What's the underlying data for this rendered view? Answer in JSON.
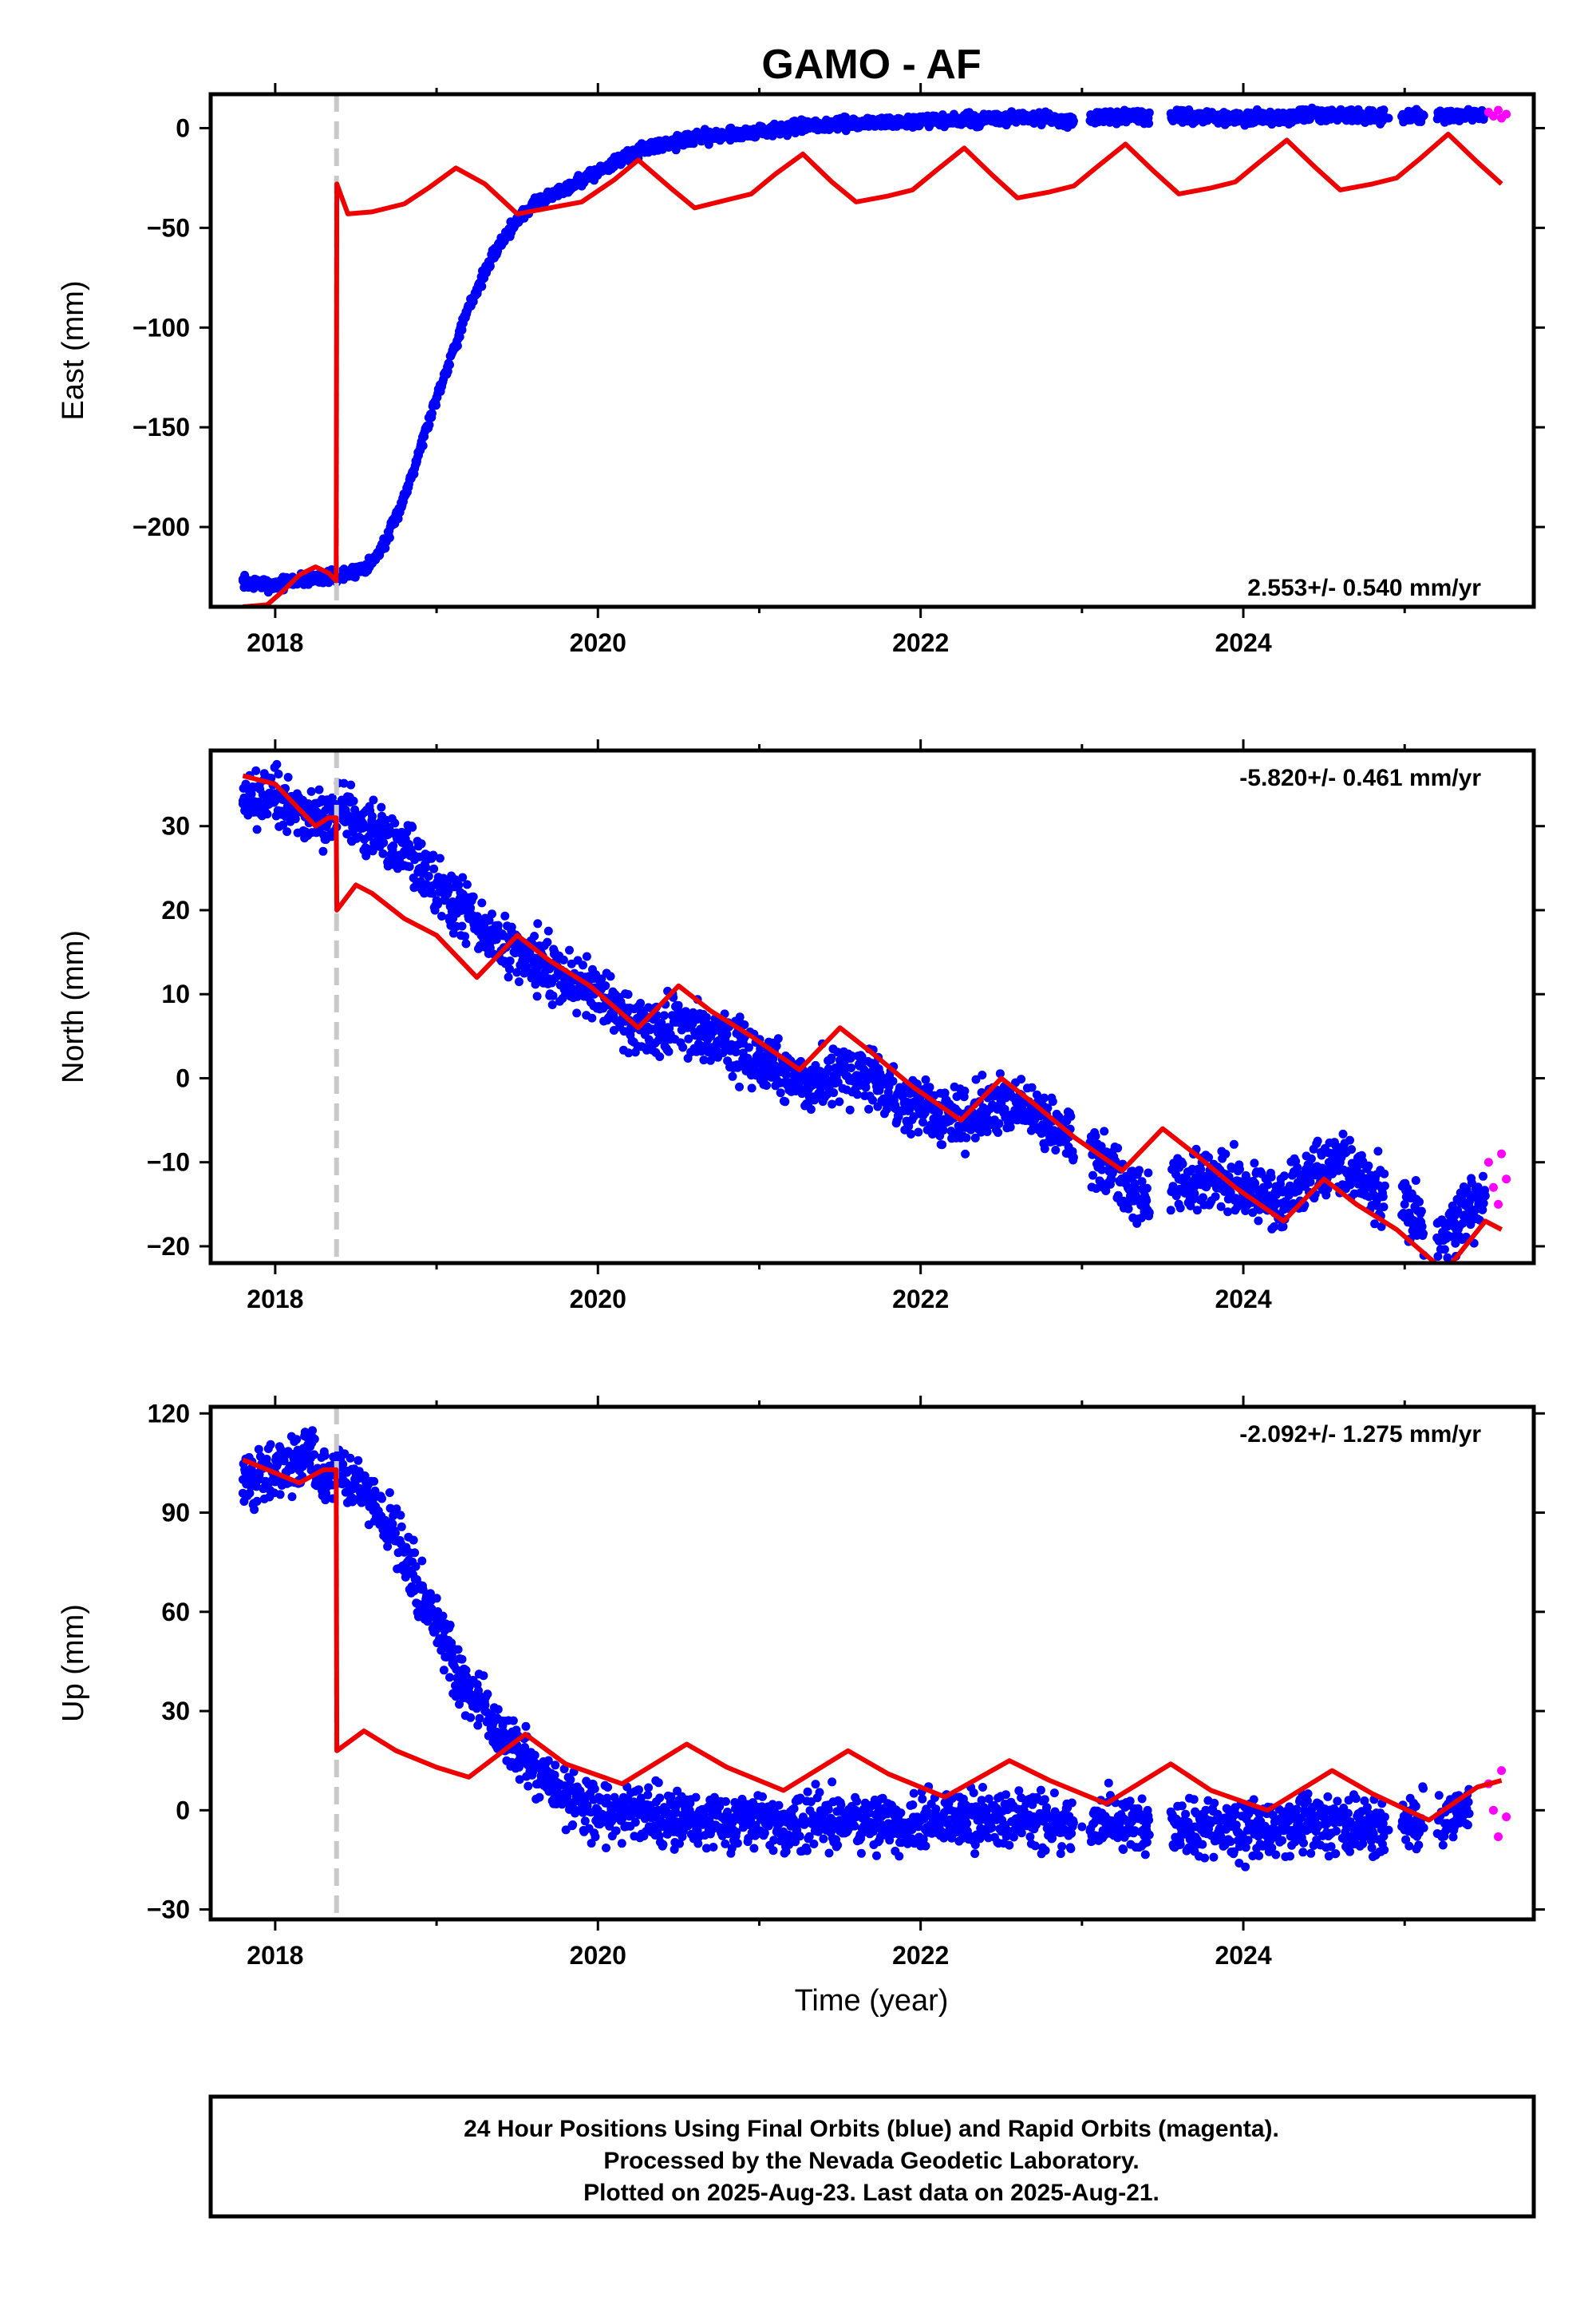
{
  "title": "GAMO - AF",
  "xlabel": "Time (year)",
  "x_ticks": [
    2018,
    2020,
    2022,
    2024
  ],
  "footer": {
    "line1": "24 Hour Positions Using Final Orbits (blue) and Rapid Orbits (magenta).",
    "line2": "Processed by the Nevada Geodetic Laboratory.",
    "line3": "Plotted on 2025-Aug-23. Last data on 2025-Aug-21."
  },
  "colors": {
    "final": "#0000ff",
    "rapid": "#ff00ff",
    "model": "#ee0000",
    "event": "#c8c8c8"
  },
  "chart_data": [
    {
      "type": "scatter",
      "panel": "east",
      "ylabel": "East (mm)",
      "rate_label": "2.553+/- 0.540 mm/yr",
      "xlim": [
        2017.6,
        2025.8
      ],
      "ylim": [
        -240,
        17
      ],
      "y_ticks": [
        0,
        -50,
        -100,
        -150,
        -200
      ],
      "y_tick_labels": [
        "0",
        "−50",
        "−100",
        "−150",
        "−200"
      ],
      "event_line_x": 2018.38,
      "final_orbits": [
        [
          2017.8,
          -227
        ],
        [
          2017.85,
          -228
        ],
        [
          2018.0,
          -229
        ],
        [
          2018.1,
          -227
        ],
        [
          2018.2,
          -226
        ],
        [
          2018.3,
          -225
        ],
        [
          2018.4,
          -225
        ],
        [
          2018.5,
          -222
        ],
        [
          2018.6,
          -218
        ],
        [
          2018.7,
          -205
        ],
        [
          2018.8,
          -185
        ],
        [
          2018.9,
          -160
        ],
        [
          2019.0,
          -135
        ],
        [
          2019.1,
          -112
        ],
        [
          2019.2,
          -90
        ],
        [
          2019.3,
          -72
        ],
        [
          2019.4,
          -57
        ],
        [
          2019.5,
          -46
        ],
        [
          2019.6,
          -38
        ],
        [
          2019.8,
          -30
        ],
        [
          2020.0,
          -22
        ],
        [
          2020.2,
          -13
        ],
        [
          2020.4,
          -8
        ],
        [
          2020.6,
          -5
        ],
        [
          2020.8,
          -3
        ],
        [
          2021.0,
          -2
        ],
        [
          2021.2,
          0
        ],
        [
          2021.5,
          2
        ],
        [
          2021.8,
          3
        ],
        [
          2022.0,
          3
        ],
        [
          2022.3,
          4
        ],
        [
          2022.6,
          5
        ],
        [
          2022.9,
          4
        ],
        [
          2023.1,
          5
        ],
        [
          2023.4,
          6
        ],
        [
          2023.6,
          6
        ],
        [
          2023.8,
          5
        ],
        [
          2024.0,
          5
        ],
        [
          2024.3,
          6
        ],
        [
          2024.6,
          7
        ],
        [
          2024.9,
          5
        ],
        [
          2025.1,
          6
        ],
        [
          2025.3,
          6
        ],
        [
          2025.5,
          7
        ]
      ],
      "rapid_orbits": [
        [
          2025.52,
          8
        ],
        [
          2025.55,
          6
        ],
        [
          2025.58,
          9
        ],
        [
          2025.6,
          5
        ],
        [
          2025.63,
          7
        ]
      ],
      "model": [
        [
          2017.8,
          -240
        ],
        [
          2017.95,
          -239
        ],
        [
          2018.05,
          -232
        ],
        [
          2018.15,
          -224
        ],
        [
          2018.25,
          -220
        ],
        [
          2018.33,
          -223
        ],
        [
          2018.378,
          -227
        ],
        [
          2018.382,
          -28
        ],
        [
          2018.45,
          -43
        ],
        [
          2018.6,
          -42
        ],
        [
          2018.8,
          -38
        ],
        [
          2018.95,
          -30
        ],
        [
          2019.12,
          -20
        ],
        [
          2019.3,
          -28
        ],
        [
          2019.5,
          -43
        ],
        [
          2019.7,
          -40
        ],
        [
          2019.9,
          -37
        ],
        [
          2020.1,
          -26
        ],
        [
          2020.25,
          -16
        ],
        [
          2020.45,
          -30
        ],
        [
          2020.6,
          -40
        ],
        [
          2020.8,
          -36
        ],
        [
          2020.95,
          -33
        ],
        [
          2021.1,
          -23
        ],
        [
          2021.27,
          -13
        ],
        [
          2021.45,
          -27
        ],
        [
          2021.6,
          -37
        ],
        [
          2021.8,
          -34
        ],
        [
          2021.95,
          -31
        ],
        [
          2022.1,
          -21
        ],
        [
          2022.27,
          -10
        ],
        [
          2022.45,
          -24
        ],
        [
          2022.6,
          -35
        ],
        [
          2022.8,
          -32
        ],
        [
          2022.95,
          -29
        ],
        [
          2023.1,
          -19
        ],
        [
          2023.27,
          -8
        ],
        [
          2023.45,
          -22
        ],
        [
          2023.6,
          -33
        ],
        [
          2023.8,
          -30
        ],
        [
          2023.95,
          -27
        ],
        [
          2024.1,
          -17
        ],
        [
          2024.27,
          -6
        ],
        [
          2024.45,
          -20
        ],
        [
          2024.6,
          -31
        ],
        [
          2024.8,
          -28
        ],
        [
          2024.95,
          -25
        ],
        [
          2025.1,
          -15
        ],
        [
          2025.27,
          -3
        ],
        [
          2025.45,
          -17
        ],
        [
          2025.6,
          -28
        ]
      ]
    },
    {
      "type": "scatter",
      "panel": "north",
      "ylabel": "North (mm)",
      "rate_label": "-5.820+/- 0.461 mm/yr",
      "xlim": [
        2017.6,
        2025.8
      ],
      "ylim": [
        -22,
        39
      ],
      "y_ticks": [
        30,
        20,
        10,
        0,
        -10,
        -20
      ],
      "y_tick_labels": [
        "30",
        "20",
        "10",
        "0",
        "−10",
        "−20"
      ],
      "event_line_x": 2018.38,
      "final_orbits": [
        [
          2017.8,
          33
        ],
        [
          2018.0,
          33
        ],
        [
          2018.1,
          32
        ],
        [
          2018.2,
          31
        ],
        [
          2018.3,
          31
        ],
        [
          2018.4,
          32
        ],
        [
          2018.5,
          31
        ],
        [
          2018.6,
          30
        ],
        [
          2018.7,
          29
        ],
        [
          2018.8,
          27
        ],
        [
          2018.9,
          25
        ],
        [
          2019.0,
          23
        ],
        [
          2019.1,
          21
        ],
        [
          2019.2,
          19
        ],
        [
          2019.3,
          17
        ],
        [
          2019.5,
          15
        ],
        [
          2019.7,
          13
        ],
        [
          2019.9,
          11
        ],
        [
          2020.1,
          8
        ],
        [
          2020.3,
          6
        ],
        [
          2020.5,
          7
        ],
        [
          2020.7,
          5
        ],
        [
          2020.9,
          3
        ],
        [
          2021.1,
          1
        ],
        [
          2021.3,
          -1
        ],
        [
          2021.5,
          1
        ],
        [
          2021.7,
          0
        ],
        [
          2021.9,
          -3
        ],
        [
          2022.1,
          -4
        ],
        [
          2022.3,
          -5
        ],
        [
          2022.5,
          -3
        ],
        [
          2022.7,
          -4
        ],
        [
          2022.9,
          -7
        ],
        [
          2023.1,
          -9
        ],
        [
          2023.3,
          -14
        ],
        [
          2023.6,
          -12
        ],
        [
          2023.8,
          -12
        ],
        [
          2024.0,
          -13
        ],
        [
          2024.2,
          -15
        ],
        [
          2024.4,
          -12
        ],
        [
          2024.6,
          -10
        ],
        [
          2024.8,
          -13
        ],
        [
          2025.0,
          -15
        ],
        [
          2025.2,
          -19
        ],
        [
          2025.4,
          -16
        ],
        [
          2025.5,
          -14
        ]
      ],
      "rapid_orbits": [
        [
          2025.52,
          -10
        ],
        [
          2025.55,
          -13
        ],
        [
          2025.58,
          -15
        ],
        [
          2025.6,
          -9
        ],
        [
          2025.63,
          -12
        ]
      ],
      "model": [
        [
          2017.8,
          36
        ],
        [
          2018.0,
          35
        ],
        [
          2018.15,
          32
        ],
        [
          2018.25,
          30
        ],
        [
          2018.33,
          31
        ],
        [
          2018.378,
          31
        ],
        [
          2018.382,
          20
        ],
        [
          2018.5,
          23
        ],
        [
          2018.6,
          22
        ],
        [
          2018.8,
          19
        ],
        [
          2019.0,
          17
        ],
        [
          2019.25,
          12
        ],
        [
          2019.5,
          17
        ],
        [
          2019.7,
          14
        ],
        [
          2019.95,
          11
        ],
        [
          2020.25,
          6
        ],
        [
          2020.5,
          11
        ],
        [
          2020.7,
          8
        ],
        [
          2020.95,
          5
        ],
        [
          2021.25,
          1
        ],
        [
          2021.5,
          6
        ],
        [
          2021.7,
          3
        ],
        [
          2021.95,
          -1
        ],
        [
          2022.25,
          -5
        ],
        [
          2022.5,
          0
        ],
        [
          2022.7,
          -3
        ],
        [
          2022.95,
          -7
        ],
        [
          2023.25,
          -11
        ],
        [
          2023.5,
          -6
        ],
        [
          2023.7,
          -9
        ],
        [
          2023.95,
          -13
        ],
        [
          2024.25,
          -17
        ],
        [
          2024.5,
          -12
        ],
        [
          2024.7,
          -15
        ],
        [
          2024.95,
          -18
        ],
        [
          2025.25,
          -23
        ],
        [
          2025.5,
          -17
        ],
        [
          2025.6,
          -18
        ]
      ]
    },
    {
      "type": "scatter",
      "panel": "up",
      "ylabel": "Up (mm)",
      "rate_label": "-2.092+/- 1.275 mm/yr",
      "xlim": [
        2017.6,
        2025.8
      ],
      "ylim": [
        -33,
        122
      ],
      "y_ticks": [
        120,
        90,
        60,
        30,
        0,
        -30
      ],
      "y_tick_labels": [
        "120",
        "90",
        "60",
        "30",
        "0",
        "−30"
      ],
      "event_line_x": 2018.38,
      "final_orbits": [
        [
          2017.8,
          100
        ],
        [
          2018.0,
          102
        ],
        [
          2018.1,
          103
        ],
        [
          2018.2,
          108
        ],
        [
          2018.3,
          102
        ],
        [
          2018.4,
          100
        ],
        [
          2018.5,
          98
        ],
        [
          2018.6,
          93
        ],
        [
          2018.7,
          87
        ],
        [
          2018.8,
          78
        ],
        [
          2018.9,
          68
        ],
        [
          2019.0,
          55
        ],
        [
          2019.1,
          45
        ],
        [
          2019.2,
          37
        ],
        [
          2019.3,
          30
        ],
        [
          2019.4,
          23
        ],
        [
          2019.5,
          18
        ],
        [
          2019.6,
          14
        ],
        [
          2019.7,
          10
        ],
        [
          2019.8,
          5
        ],
        [
          2020.0,
          0
        ],
        [
          2020.3,
          -2
        ],
        [
          2020.6,
          -3
        ],
        [
          2020.9,
          -4
        ],
        [
          2021.2,
          -4
        ],
        [
          2021.5,
          -3
        ],
        [
          2021.8,
          -4
        ],
        [
          2022.1,
          -3
        ],
        [
          2022.4,
          -2
        ],
        [
          2022.7,
          -3
        ],
        [
          2023.0,
          -5
        ],
        [
          2023.2,
          -4
        ],
        [
          2023.4,
          -6
        ],
        [
          2023.7,
          -5
        ],
        [
          2023.9,
          -5
        ],
        [
          2024.1,
          -6
        ],
        [
          2024.4,
          -4
        ],
        [
          2024.7,
          -5
        ],
        [
          2024.9,
          -6
        ],
        [
          2025.1,
          -3
        ],
        [
          2025.4,
          -1
        ]
      ],
      "rapid_orbits": [
        [
          2025.52,
          8
        ],
        [
          2025.55,
          0
        ],
        [
          2025.58,
          -8
        ],
        [
          2025.6,
          12
        ],
        [
          2025.63,
          -2
        ]
      ],
      "model": [
        [
          2017.8,
          106
        ],
        [
          2017.95,
          103
        ],
        [
          2018.15,
          99
        ],
        [
          2018.3,
          103
        ],
        [
          2018.378,
          103
        ],
        [
          2018.382,
          18
        ],
        [
          2018.55,
          24
        ],
        [
          2018.75,
          18
        ],
        [
          2019.0,
          13
        ],
        [
          2019.2,
          10
        ],
        [
          2019.55,
          23
        ],
        [
          2019.8,
          14
        ],
        [
          2020.15,
          8
        ],
        [
          2020.55,
          20
        ],
        [
          2020.8,
          13
        ],
        [
          2021.15,
          6
        ],
        [
          2021.55,
          18
        ],
        [
          2021.8,
          11
        ],
        [
          2022.15,
          4
        ],
        [
          2022.55,
          15
        ],
        [
          2022.8,
          9
        ],
        [
          2023.15,
          2
        ],
        [
          2023.55,
          14
        ],
        [
          2023.8,
          6
        ],
        [
          2024.15,
          0
        ],
        [
          2024.55,
          12
        ],
        [
          2024.8,
          5
        ],
        [
          2025.15,
          -3
        ],
        [
          2025.45,
          7
        ],
        [
          2025.6,
          9
        ]
      ]
    }
  ]
}
